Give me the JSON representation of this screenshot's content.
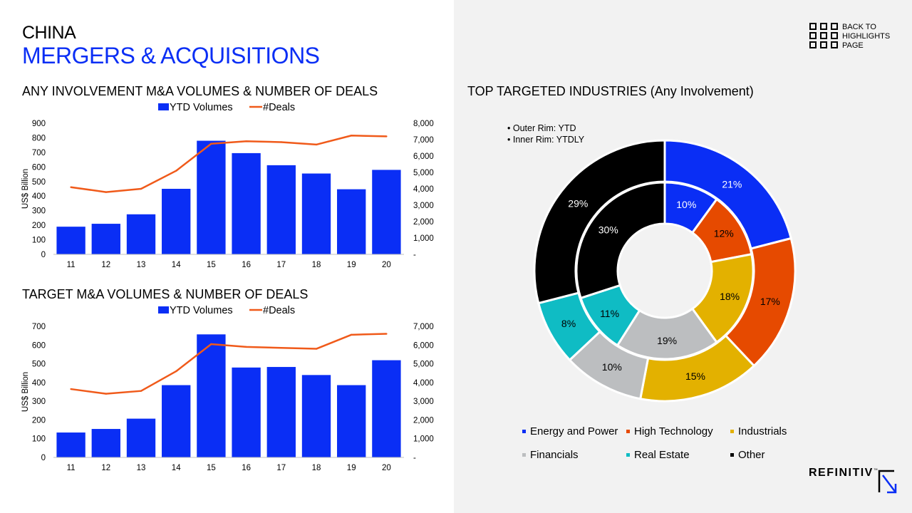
{
  "header": {
    "country": "CHINA",
    "title": "MERGERS & ACQUISITIONS"
  },
  "nav": {
    "back_lines": [
      "BACK TO",
      "HIGHLIGHTS",
      "PAGE"
    ]
  },
  "brand": {
    "name": "REFINITIV",
    "mark": "™"
  },
  "colors": {
    "bar": "#0a2ef5",
    "line": "#f05a1a",
    "energy": "#0a2ef5",
    "hightech": "#e64a00",
    "industrials": "#e3b100",
    "financials": "#bcbec0",
    "realestate": "#0fbcc4",
    "other": "#000000"
  },
  "chart_data": [
    {
      "id": "any-involvement",
      "type": "bar",
      "title": "ANY INVOLVEMENT M&A VOLUMES & NUMBER OF DEALS",
      "legend": [
        "YTD Volumes",
        "#Deals"
      ],
      "categories": [
        "11",
        "12",
        "13",
        "14",
        "15",
        "16",
        "17",
        "18",
        "19",
        "20"
      ],
      "ylabel": "US$ Billion",
      "ylim": [
        0,
        900
      ],
      "yticks": [
        "0",
        "100",
        "200",
        "300",
        "400",
        "500",
        "600",
        "700",
        "800",
        "900"
      ],
      "y2lim": [
        0,
        8000
      ],
      "y2ticks": [
        "-",
        "1,000",
        "2,000",
        "3,000",
        "4,000",
        "5,000",
        "6,000",
        "7,000",
        "8,000"
      ],
      "series": [
        {
          "name": "YTD Volumes",
          "type": "bar",
          "axis": "left",
          "values": [
            190,
            210,
            275,
            450,
            780,
            695,
            612,
            555,
            447,
            580
          ]
        },
        {
          "name": "#Deals",
          "type": "line",
          "axis": "right",
          "values": [
            4100,
            3800,
            4000,
            5100,
            6750,
            6900,
            6850,
            6700,
            7250,
            7200
          ]
        }
      ]
    },
    {
      "id": "target",
      "type": "bar",
      "title": "TARGET M&A VOLUMES & NUMBER OF DEALS",
      "legend": [
        "YTD Volumes",
        "#Deals"
      ],
      "categories": [
        "11",
        "12",
        "13",
        "14",
        "15",
        "16",
        "17",
        "18",
        "19",
        "20"
      ],
      "ylabel": "US$ Billion",
      "ylim": [
        0,
        700
      ],
      "yticks": [
        "0",
        "100",
        "200",
        "300",
        "400",
        "500",
        "600",
        "700"
      ],
      "y2lim": [
        0,
        7000
      ],
      "y2ticks": [
        "-",
        "1,000",
        "2,000",
        "3,000",
        "4,000",
        "5,000",
        "6,000",
        "7,000"
      ],
      "series": [
        {
          "name": "YTD Volumes",
          "type": "bar",
          "axis": "left",
          "values": [
            133,
            152,
            207,
            386,
            657,
            480,
            483,
            440,
            386,
            519
          ]
        },
        {
          "name": "#Deals",
          "type": "line",
          "axis": "right",
          "values": [
            3650,
            3400,
            3550,
            4600,
            6050,
            5900,
            5850,
            5800,
            6550,
            6600
          ]
        }
      ]
    },
    {
      "id": "top-industries",
      "type": "pie",
      "title": "TOP TARGETED INDUSTRIES  (Any Involvement)",
      "notes": [
        "Outer Rim: YTD",
        "Inner Rim: YTDLY"
      ],
      "categories": [
        "Energy and Power",
        "High Technology",
        "Industrials",
        "Financials",
        "Real Estate",
        "Other"
      ],
      "series": [
        {
          "name": "YTD",
          "ring": "outer",
          "values": [
            21,
            17,
            15,
            10,
            8,
            29
          ],
          "labels": [
            "21%",
            "17%",
            "15%",
            "10%",
            "8%",
            "29%"
          ]
        },
        {
          "name": "YTDLY",
          "ring": "inner",
          "values": [
            10,
            12,
            18,
            19,
            11,
            30
          ],
          "labels": [
            "10%",
            "12%",
            "18%",
            "19%",
            "11%",
            "30%"
          ]
        }
      ]
    }
  ]
}
